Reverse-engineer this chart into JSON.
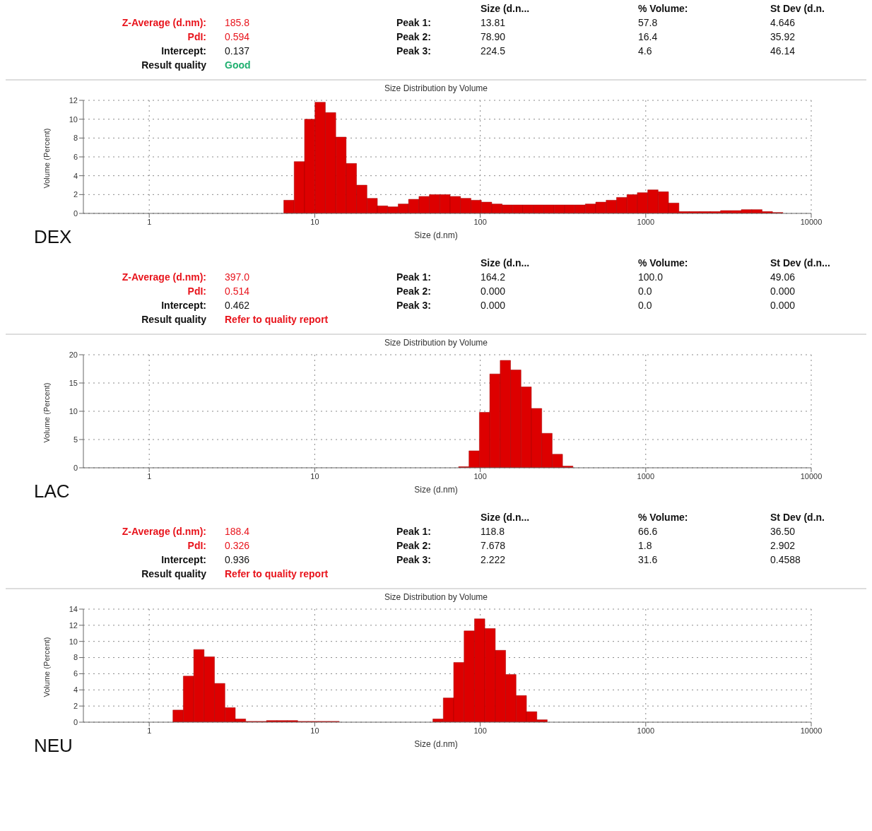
{
  "chart_data": [
    {
      "type": "other",
      "annotations": [
        "Z-Average (d.nm):",
        "185.8",
        "PdI:",
        "0.594",
        "Intercept:",
        "0.137",
        "Result quality",
        "Good",
        "Size (d.n...",
        "% Volume:",
        "St Dev (d.n.",
        "Peak 1:",
        "13.81",
        "57.8",
        "4.646",
        "Peak 2:",
        "78.90",
        "16.4",
        "35.92",
        "Peak 3:",
        "224.5",
        "4.6",
        "46.14"
      ],
      "colors": [
        "#e8141c",
        "#e8141c",
        "#e8141c",
        "#e8141c",
        "#111111",
        "#111111",
        "#111111",
        "#20b070",
        "#111111",
        "#111111",
        "#111111",
        "#111111",
        "#111111",
        "#111111",
        "#111111",
        "#111111",
        "#111111",
        "#111111",
        "#111111",
        "#111111",
        "#111111",
        "#111111",
        "#111111"
      ]
    },
    {
      "type": "histogram",
      "title": "Size Distribution by Volume",
      "xlabel": "Size (d.nm)",
      "ylabel": "Volume (Percent)",
      "annotations": [
        "DEX"
      ],
      "color": "#dd0000",
      "log": "x",
      "grid": true,
      "bins": [
        6.5,
        7.51,
        8.68,
        10.03,
        11.59,
        13.4,
        15.48,
        17.89,
        20.68,
        23.9,
        27.62,
        31.92,
        36.89,
        42.63,
        49.27,
        56.94,
        65.8,
        76.04,
        87.88,
        101.6,
        117.4,
        135.7,
        156.8,
        181.2,
        209.4,
        242.0,
        279.7,
        323.2,
        373.5,
        431.5,
        498.7,
        576.4,
        666.1,
        769.8,
        889.6,
        1028,
        1188,
        1373,
        1587,
        1834,
        2120,
        2449,
        2831,
        3271,
        3780,
        4369,
        5049,
        5834,
        6743
      ],
      "values": [
        1.4,
        5.5,
        10,
        11.8,
        10.7,
        8.1,
        5.3,
        3.0,
        1.6,
        0.8,
        0.7,
        1.0,
        1.5,
        1.8,
        2.0,
        2.0,
        1.8,
        1.6,
        1.4,
        1.2,
        1.0,
        0.9,
        0.9,
        0.9,
        0.9,
        0.9,
        0.9,
        0.9,
        0.9,
        1.0,
        1.2,
        1.4,
        1.7,
        2.0,
        2.2,
        2.5,
        2.3,
        1.1,
        0.2,
        0.2,
        0.2,
        0.2,
        0.3,
        0.3,
        0.4,
        0.4,
        0.2,
        0.1
      ],
      "xlim": [
        0.4,
        10000
      ],
      "xticks": [
        1,
        10,
        100,
        1000,
        10000
      ],
      "ylim": [
        0,
        12
      ],
      "yticks": [
        0,
        2,
        4,
        6,
        8,
        10,
        12
      ]
    },
    {
      "type": "other",
      "annotations": [
        "Z-Average (d.nm):",
        "397.0",
        "PdI:",
        "0.514",
        "Intercept:",
        "0.462",
        "Result quality",
        "Refer to quality report",
        "Size (d.n...",
        "% Volume:",
        "St Dev (d.n...",
        "Peak 1:",
        "164.2",
        "100.0",
        "49.06",
        "Peak 2:",
        "0.000",
        "0.0",
        "0.000",
        "Peak 3:",
        "0.000",
        "0.0",
        "0.000"
      ],
      "colors": [
        "#e8141c",
        "#e8141c",
        "#e8141c",
        "#e8141c",
        "#111111",
        "#111111",
        "#111111",
        "#e8141c",
        "#111111",
        "#111111",
        "#111111",
        "#111111",
        "#111111",
        "#111111",
        "#111111",
        "#111111",
        "#111111",
        "#111111",
        "#111111",
        "#111111",
        "#111111",
        "#111111",
        "#111111"
      ]
    },
    {
      "type": "histogram",
      "title": "Size Distribution by Volume",
      "xlabel": "Size (d.nm)",
      "ylabel": "Volume (Percent)",
      "annotations": [
        "LAC"
      ],
      "color": "#dd0000",
      "log": "x",
      "grid": true,
      "bins": [
        74.0,
        85.5,
        98.8,
        114.2,
        132.0,
        152.5,
        176.3,
        203.7,
        235.4,
        272.1,
        314.4,
        363.3
      ],
      "values": [
        0.2,
        3,
        9.8,
        16.6,
        19,
        17.3,
        14.3,
        10.5,
        6.1,
        2.4,
        0.3
      ],
      "xlim": [
        0.4,
        10000
      ],
      "xticks": [
        1,
        10,
        100,
        1000,
        10000
      ],
      "ylim": [
        0,
        20
      ],
      "yticks": [
        0,
        5,
        10,
        15,
        20
      ]
    },
    {
      "type": "other",
      "annotations": [
        "Z-Average (d.nm):",
        "188.4",
        "PdI:",
        "0.326",
        "Intercept:",
        "0.936",
        "Result quality",
        "Refer to quality report",
        "Size (d.n...",
        "% Volume:",
        "St Dev (d.n.",
        "Peak 1:",
        "118.8",
        "66.6",
        "36.50",
        "Peak 2:",
        "7.678",
        "1.8",
        "2.902",
        "Peak 3:",
        "2.222",
        "31.6",
        "0.4588"
      ],
      "colors": [
        "#e8141c",
        "#e8141c",
        "#e8141c",
        "#e8141c",
        "#111111",
        "#111111",
        "#111111",
        "#e8141c",
        "#111111",
        "#111111",
        "#111111",
        "#111111",
        "#111111",
        "#111111",
        "#111111",
        "#111111",
        "#111111",
        "#111111",
        "#111111",
        "#111111",
        "#111111",
        "#111111",
        "#111111"
      ]
    },
    {
      "type": "histogram",
      "title": "Size Distribution by Volume",
      "xlabel": "Size (d.nm)",
      "ylabel": "Volume (Percent)",
      "annotations": [
        "NEU"
      ],
      "color": "#dd0000",
      "log": "x",
      "grid": true,
      "bins": [
        1.39,
        1.606,
        1.857,
        2.145,
        2.479,
        2.866,
        3.311,
        3.827,
        4.423,
        5.11,
        5.907,
        6.826,
        7.889,
        9.118,
        10.53,
        12.18,
        14.07,
        16.26,
        18.79,
        21.72,
        25.1,
        29.01,
        33.52,
        38.74,
        44.77,
        51.74,
        59.8,
        69.1,
        79.87,
        92.29,
        106.6,
        123.3,
        142.4,
        164.6,
        190.3,
        219.9,
        254.1
      ],
      "values": [
        1.5,
        5.7,
        9.0,
        8.1,
        4.8,
        1.8,
        0.4,
        0.1,
        0.1,
        0.2,
        0.2,
        0.2,
        0.1,
        0.1,
        0.1,
        0.1,
        0,
        0,
        0,
        0,
        0,
        0,
        0,
        0,
        0,
        0.4,
        3.0,
        7.4,
        11.3,
        12.8,
        11.6,
        8.9,
        5.9,
        3.3,
        1.3,
        0.3
      ],
      "xlim": [
        0.4,
        10000
      ],
      "xticks": [
        1,
        10,
        100,
        1000,
        10000
      ],
      "ylim": [
        0,
        14
      ],
      "yticks": [
        0,
        2,
        4,
        6,
        8,
        10,
        12,
        14
      ]
    }
  ]
}
